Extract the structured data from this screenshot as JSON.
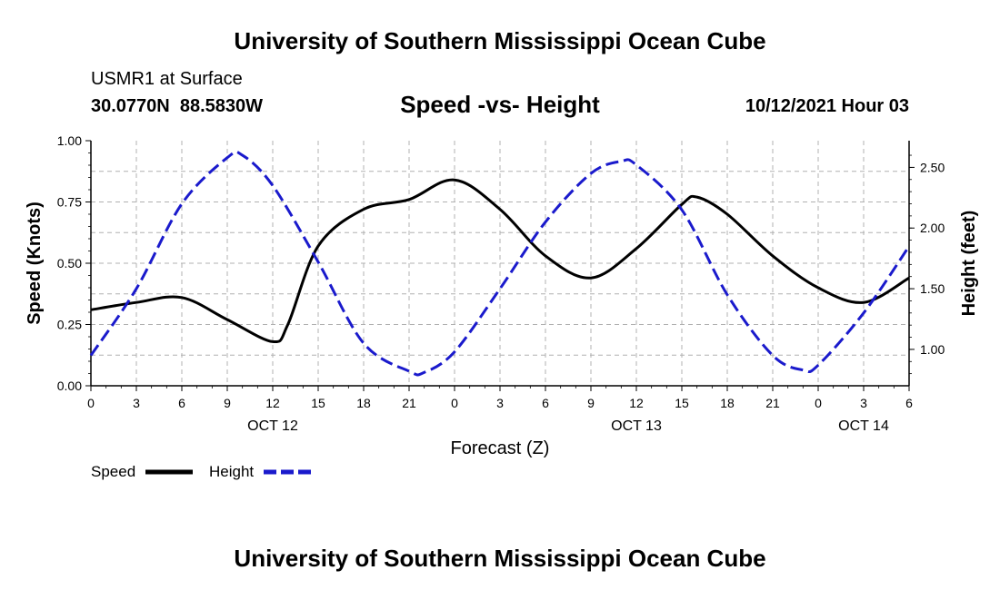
{
  "header": {
    "org_title": "University of Southern Mississippi Ocean Cube",
    "station": "USMR1 at Surface",
    "coords": "30.0770N  88.5830W",
    "chart_title": "Speed -vs- Height",
    "timestamp": "10/12/2021 Hour 03"
  },
  "footer": {
    "org_title": "University of Southern Mississippi Ocean Cube"
  },
  "colors": {
    "speed": "#000000",
    "height": "#1a1acc",
    "grid": "#b0b0b0"
  },
  "chart_data": {
    "type": "line",
    "title": "Speed -vs- Height",
    "xlabel": "Forecast (Z)",
    "ylabel_left": "Speed (Knots)",
    "ylabel_right": "Height (feet)",
    "x_range_hours": [
      0,
      54
    ],
    "ylim_left": [
      0,
      1.0
    ],
    "ylim_right": [
      0.7,
      2.72
    ],
    "x_ticks": [
      {
        "h": 0,
        "label": "0"
      },
      {
        "h": 3,
        "label": "3"
      },
      {
        "h": 6,
        "label": "6"
      },
      {
        "h": 9,
        "label": "9"
      },
      {
        "h": 12,
        "label": "12"
      },
      {
        "h": 15,
        "label": "15"
      },
      {
        "h": 18,
        "label": "18"
      },
      {
        "h": 21,
        "label": "21"
      },
      {
        "h": 24,
        "label": "0"
      },
      {
        "h": 27,
        "label": "3"
      },
      {
        "h": 30,
        "label": "6"
      },
      {
        "h": 33,
        "label": "9"
      },
      {
        "h": 36,
        "label": "12"
      },
      {
        "h": 39,
        "label": "15"
      },
      {
        "h": 42,
        "label": "18"
      },
      {
        "h": 45,
        "label": "21"
      },
      {
        "h": 48,
        "label": "0"
      },
      {
        "h": 51,
        "label": "3"
      },
      {
        "h": 54,
        "label": "6"
      }
    ],
    "date_labels": [
      {
        "h": 12,
        "label": "OCT 12"
      },
      {
        "h": 36,
        "label": "OCT 13"
      },
      {
        "h": 51,
        "label": "OCT 14"
      }
    ],
    "left_ticks": [
      {
        "v": 0.0,
        "label": "0.00"
      },
      {
        "v": 0.25,
        "label": "0.25"
      },
      {
        "v": 0.5,
        "label": "0.50"
      },
      {
        "v": 0.75,
        "label": "0.75"
      },
      {
        "v": 1.0,
        "label": "1.00"
      }
    ],
    "right_ticks": [
      {
        "v": 1.0,
        "label": "1.00"
      },
      {
        "v": 1.5,
        "label": "1.50"
      },
      {
        "v": 2.0,
        "label": "2.00"
      },
      {
        "v": 2.5,
        "label": "2.50"
      }
    ],
    "legend": [
      {
        "name": "Speed",
        "style": "solid"
      },
      {
        "name": "Height",
        "style": "dashed"
      }
    ],
    "series": [
      {
        "name": "Speed",
        "axis": "left",
        "units": "knots",
        "x": [
          0,
          3,
          6,
          9,
          12,
          13,
          15,
          18,
          21,
          24,
          27,
          30,
          33,
          36,
          39,
          40,
          42,
          45,
          48,
          51,
          54
        ],
        "y": [
          0.31,
          0.34,
          0.36,
          0.27,
          0.18,
          0.25,
          0.57,
          0.72,
          0.76,
          0.84,
          0.72,
          0.53,
          0.44,
          0.56,
          0.74,
          0.77,
          0.7,
          0.53,
          0.4,
          0.34,
          0.44
        ]
      },
      {
        "name": "Height",
        "axis": "right",
        "units": "feet",
        "x": [
          0,
          3,
          6,
          9,
          10,
          12,
          15,
          18,
          21,
          22,
          24,
          27,
          30,
          33,
          35,
          36,
          39,
          42,
          45,
          47,
          48,
          51,
          54
        ],
        "y": [
          0.95,
          1.5,
          2.2,
          2.58,
          2.6,
          2.35,
          1.72,
          1.05,
          0.82,
          0.81,
          0.98,
          1.5,
          2.05,
          2.45,
          2.55,
          2.52,
          2.15,
          1.45,
          0.95,
          0.83,
          0.87,
          1.3,
          1.85
        ]
      }
    ]
  }
}
